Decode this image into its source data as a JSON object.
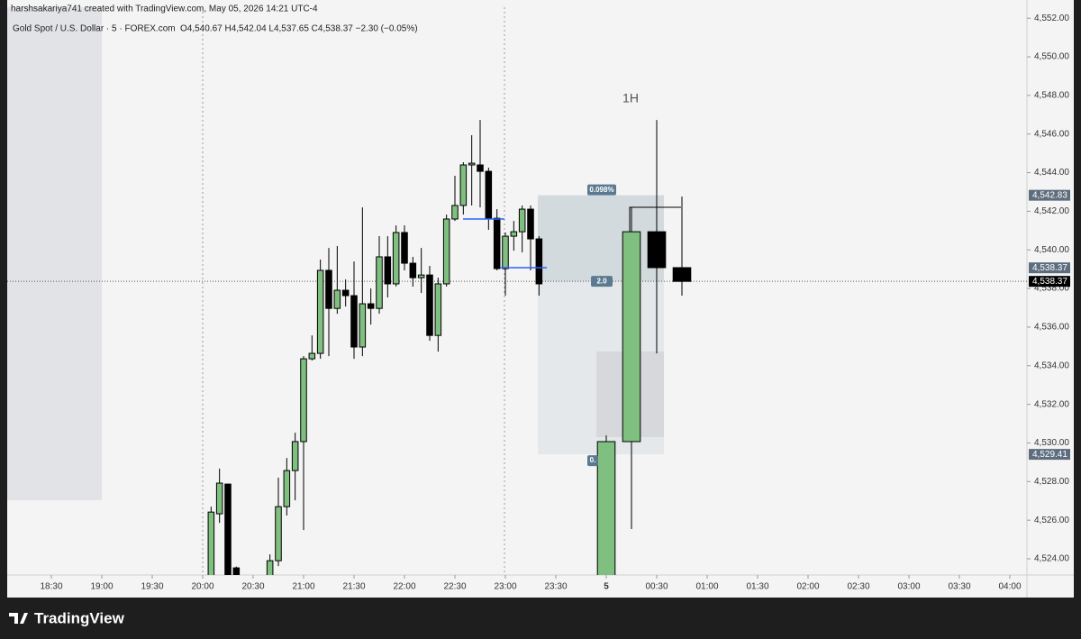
{
  "header": {
    "author_line": "harshsakariya741 created with TradingView.com, May 05, 2026 14:21 UTC-4",
    "symbol": "Gold Spot / U.S. Dollar · 5 · FOREX.com",
    "ohlc": "O4,540.67 H4,542.04 L4,537.65 C4,538.37 −2.30 (−0.05%)"
  },
  "footer": {
    "brand": "TradingView"
  },
  "chart_data": {
    "type": "candlestick",
    "x": [
      "20:05",
      "20:10",
      "20:15",
      "20:20",
      "20:40",
      "20:45",
      "20:50",
      "20:55",
      "21:00",
      "21:05",
      "21:10",
      "21:15",
      "21:20",
      "21:25",
      "21:30",
      "21:35",
      "21:40",
      "21:45",
      "21:50",
      "21:55",
      "22:00",
      "22:05",
      "22:10",
      "22:15",
      "22:20",
      "22:25",
      "22:30",
      "22:35",
      "22:40",
      "22:45",
      "22:50",
      "22:55",
      "23:00",
      "23:05",
      "23:10",
      "23:15",
      "23:20",
      "00:00",
      "00:15",
      "00:30",
      "00:45"
    ],
    "open": [
      4523.0,
      4526.33,
      4527.87,
      4523.53,
      4522.9,
      4523.9,
      4526.7,
      4528.57,
      4530.07,
      4534.36,
      4534.64,
      4538.94,
      4536.97,
      4537.91,
      4537.63,
      4534.97,
      4537.21,
      4536.97,
      4539.64,
      4538.24,
      4540.9,
      4539.31,
      4538.56,
      4538.7,
      4535.57,
      4538.24,
      4541.6,
      4542.3,
      4544.4,
      4544.4,
      4544.07,
      4541.64,
      4539.03,
      4540.71,
      4540.94,
      4542.11,
      4540.57,
      4523.0,
      4530.07,
      4540.94,
      4539.08
    ],
    "high": [
      4526.7,
      4528.67,
      4527.9,
      4523.6,
      4524.23,
      4528.2,
      4529.22,
      4530.53,
      4534.5,
      4535.57,
      4539.5,
      4540.1,
      4540.2,
      4538.47,
      4539.4,
      4542.2,
      4538.0,
      4540.71,
      4540.71,
      4541.27,
      4541.27,
      4539.64,
      4540.1,
      4539.17,
      4538.56,
      4541.83,
      4543.84,
      4544.54,
      4545.94,
      4546.73,
      4544.26,
      4542.11,
      4540.9,
      4541.5,
      4542.3,
      4542.3,
      4540.71,
      4530.39,
      4542.2,
      4546.73,
      4542.76
    ],
    "low": [
      4522.8,
      4525.86,
      4522.8,
      4522.8,
      4522.8,
      4523.62,
      4526.24,
      4527.03,
      4525.49,
      4534.27,
      4534.36,
      4534.5,
      4536.69,
      4537.07,
      4534.36,
      4534.5,
      4536.13,
      4536.69,
      4537.54,
      4538.1,
      4538.94,
      4538.1,
      4537.77,
      4535.29,
      4534.73,
      4538.1,
      4541.5,
      4541.83,
      4542.3,
      4542.2,
      4541.04,
      4538.94,
      4537.63,
      4539.96,
      4539.87,
      4538.94,
      4537.63,
      4522.8,
      4525.54,
      4534.64,
      4537.63
    ],
    "close": [
      4526.42,
      4527.92,
      4523.0,
      4523.0,
      4523.9,
      4526.7,
      4528.57,
      4530.07,
      4534.36,
      4534.64,
      4538.94,
      4536.97,
      4537.91,
      4537.63,
      4534.97,
      4537.21,
      4536.97,
      4539.64,
      4538.24,
      4540.9,
      4539.31,
      4538.56,
      4538.7,
      4535.57,
      4538.24,
      4541.6,
      4542.3,
      4544.4,
      4544.49,
      4544.07,
      4541.64,
      4539.03,
      4540.71,
      4540.94,
      4542.11,
      4540.57,
      4538.24,
      4530.07,
      4540.94,
      4539.08,
      4538.37
    ],
    "up_color": "#7fbf7f",
    "down_color": "#000000",
    "ylim": [
      4523.16,
      4552.57
    ],
    "yticks": [
      {
        "value": 4524,
        "label": "4,524.00"
      },
      {
        "value": 4526,
        "label": "4,526.00"
      },
      {
        "value": 4528,
        "label": "4,528.00"
      },
      {
        "value": 4530,
        "label": "4,530.00"
      },
      {
        "value": 4532,
        "label": "4,532.00"
      },
      {
        "value": 4534,
        "label": "4,534.00"
      },
      {
        "value": 4536,
        "label": "4,536.00"
      },
      {
        "value": 4538,
        "label": "4,538.00"
      },
      {
        "value": 4540,
        "label": "4,540.00"
      },
      {
        "value": 4542,
        "label": "4,542.00"
      },
      {
        "value": 4544,
        "label": "4,544.00"
      },
      {
        "value": 4546,
        "label": "4,546.00"
      },
      {
        "value": 4548,
        "label": "4,548.00"
      },
      {
        "value": 4550,
        "label": "4,550.00"
      },
      {
        "value": 4552,
        "label": "4,552.00"
      }
    ],
    "xticks": [
      "18:30",
      "19:00",
      "19:30",
      "20:00",
      "20:30",
      "21:00",
      "21:30",
      "22:00",
      "22:30",
      "23:00",
      "23:30",
      {
        "value": "00:00",
        "label": "5"
      },
      "00:30",
      "01:00",
      "01:30",
      "02:00",
      "02:30",
      "03:00",
      "03:30",
      "04:00"
    ],
    "price_labels": [
      {
        "value": 4542.83,
        "label": "4,542.83",
        "color": "#5d6d7e"
      },
      {
        "value": 4538.37,
        "label": "4,538.37",
        "color": "#5d6d7e"
      },
      {
        "value": 4538.37,
        "label": "4,538.37",
        "color": "#000000"
      },
      {
        "value": 4529.41,
        "label": "4,529.41",
        "color": "#5d6d7e"
      }
    ],
    "annotations": {
      "timeframe": "1H",
      "measure_top": "0.098%",
      "measure_mid": "2.0",
      "measure_bottom": "0."
    }
  }
}
